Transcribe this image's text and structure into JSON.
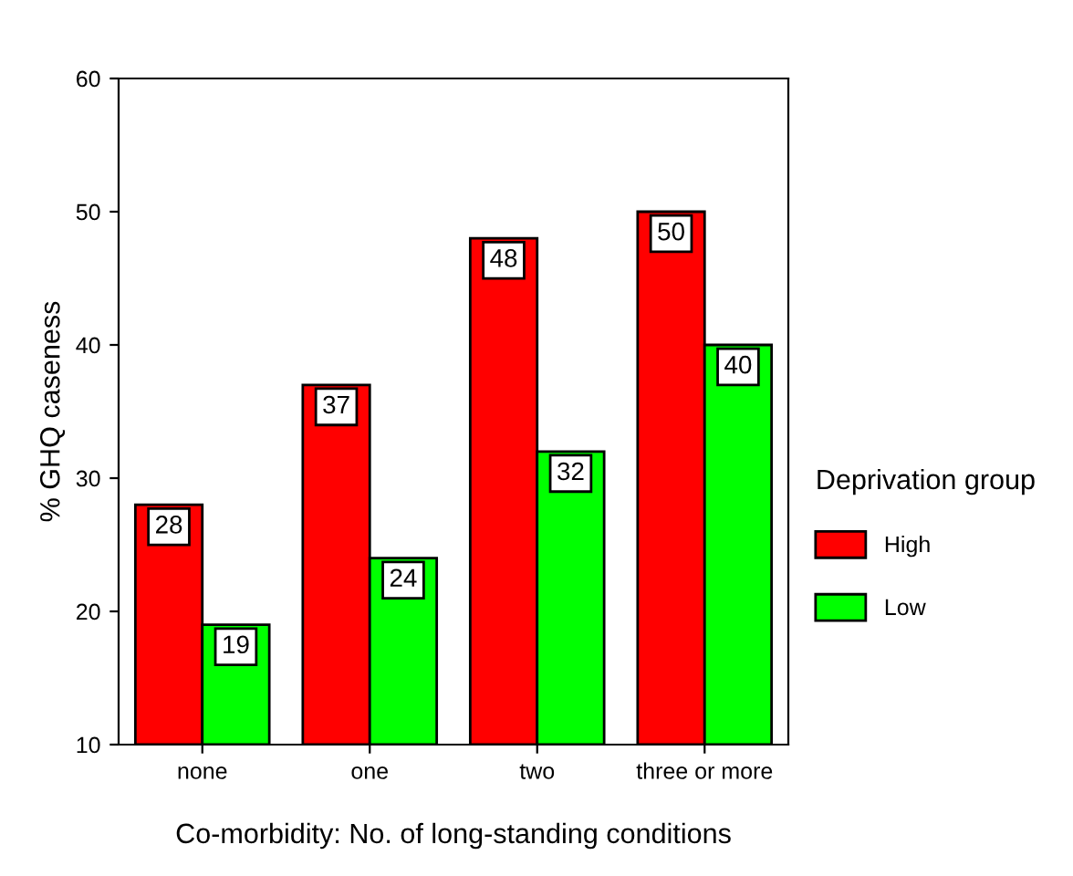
{
  "chart_data": {
    "type": "bar",
    "xlabel": "Co-morbidity: No. of long-standing conditions",
    "ylabel": "% GHQ caseness",
    "legend_title": "Deprivation group",
    "categories": [
      "none",
      "one",
      "two",
      "three or more"
    ],
    "series": [
      {
        "name": "High",
        "color": "#ff0000",
        "values": [
          28,
          37,
          48,
          50
        ]
      },
      {
        "name": "Low",
        "color": "#00ff00",
        "values": [
          19,
          24,
          32,
          40
        ]
      }
    ],
    "ylim": [
      10,
      60
    ],
    "yticks": [
      10,
      20,
      30,
      40,
      50,
      60
    ],
    "data_labels": true,
    "legend": "right",
    "grid": false
  }
}
